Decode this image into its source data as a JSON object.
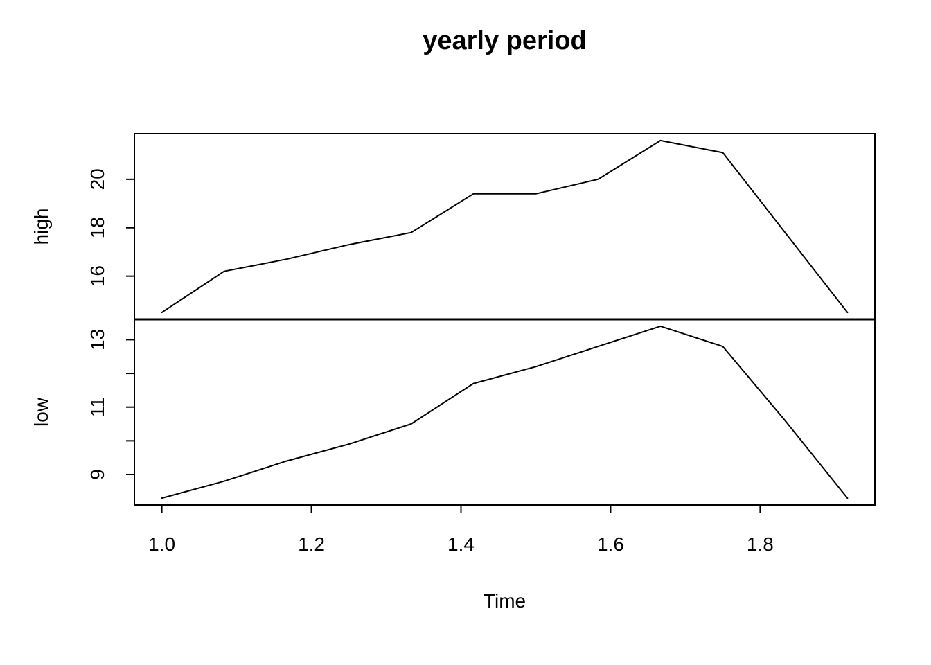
{
  "title": "yearly period",
  "xlabel": "Time",
  "background": "#ffffff",
  "chart_data": {
    "type": "line",
    "title": "yearly period",
    "xlabel": "Time",
    "x": [
      1.0,
      1.0833,
      1.1667,
      1.25,
      1.3333,
      1.4167,
      1.5,
      1.5833,
      1.6667,
      1.75,
      1.8333,
      1.9167
    ],
    "x_ticks": {
      "values": [
        1.0,
        1.2,
        1.4,
        1.6,
        1.8
      ],
      "labels": [
        "1.0",
        "1.2",
        "1.4",
        "1.6",
        "1.8"
      ]
    },
    "panels": [
      {
        "ylabel": "high",
        "values": [
          14.5,
          16.2,
          16.7,
          17.3,
          17.8,
          19.4,
          19.4,
          20.0,
          21.6,
          21.1,
          17.8,
          14.5
        ],
        "y_ticks": {
          "values": [
            16,
            18,
            20
          ],
          "labels": [
            "16",
            "18",
            "20"
          ]
        },
        "ylim_padded": [
          14.216,
          21.884
        ]
      },
      {
        "ylabel": "low",
        "values": [
          8.3,
          8.8,
          9.4,
          9.9,
          10.5,
          11.7,
          12.2,
          12.8,
          13.4,
          12.8,
          10.6,
          8.3
        ],
        "y_ticks": {
          "values": [
            9,
            10,
            11,
            12,
            13
          ],
          "labels": [
            "9",
            "",
            "11",
            "",
            "13"
          ]
        },
        "ylim_padded": [
          8.096,
          13.604
        ]
      }
    ],
    "line_color": "#000000",
    "axis_color": "#000000",
    "x_pad_frac": 0.04,
    "y_pad_frac": 0.04,
    "grid": false,
    "legend": "none"
  }
}
